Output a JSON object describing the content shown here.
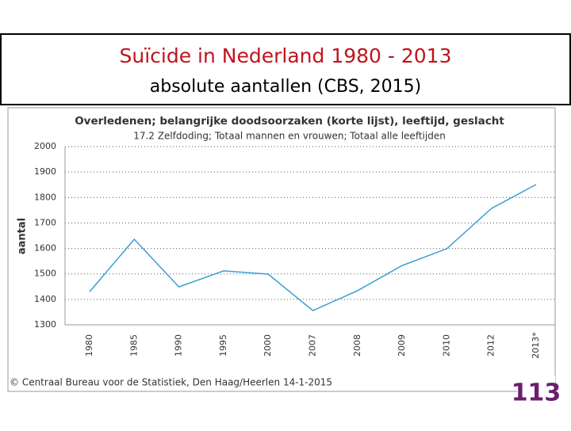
{
  "slide": {
    "title": "Suïcide in Nederland 1980 - 2013",
    "subtitle": "absolute aantallen (CBS, 2015)"
  },
  "chart_data": {
    "type": "line",
    "title": "Overledenen; belangrijke doodsoorzaken (korte lijst), leeftijd, geslacht",
    "subtitle": "17.2 Zelfdoding; Totaal mannen en vrouwen; Totaal alle leeftijden",
    "y_label": "aantal",
    "categories": [
      "1980",
      "1985",
      "1990",
      "1995",
      "2000",
      "2007",
      "2008",
      "2009",
      "2010",
      "2012",
      "2013*"
    ],
    "values": [
      1430,
      1636,
      1449,
      1512,
      1499,
      1356,
      1434,
      1533,
      1599,
      1757,
      1851
    ],
    "color": "#3a9fd0",
    "ylim": [
      1300,
      2000
    ],
    "yticks": [
      1300,
      1400,
      1500,
      1600,
      1700,
      1800,
      1900,
      2000
    ],
    "grid": true,
    "source": "© Centraal Bureau voor de Statistiek, Den Haag/Heerlen 14-1-2015"
  },
  "logo": {
    "text": "113"
  }
}
